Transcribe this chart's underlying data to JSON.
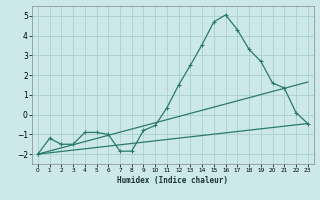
{
  "xlabel": "Humidex (Indice chaleur)",
  "ylabel": "",
  "bg_color": "#cce8e8",
  "grid_color": "#aad0d0",
  "line_color": "#2a7a6a",
  "xlim": [
    -0.5,
    23.5
  ],
  "ylim": [
    -2.5,
    5.5
  ],
  "xticks": [
    0,
    1,
    2,
    3,
    4,
    5,
    6,
    7,
    8,
    9,
    10,
    11,
    12,
    13,
    14,
    15,
    16,
    17,
    18,
    19,
    20,
    21,
    22,
    23
  ],
  "yticks": [
    -2,
    -1,
    0,
    1,
    2,
    3,
    4,
    5
  ],
  "line1_x": [
    0,
    1,
    2,
    3,
    4,
    5,
    6,
    7,
    8,
    9,
    10,
    11,
    12,
    13,
    14,
    15,
    16,
    17,
    18,
    19,
    20,
    21,
    22,
    23
  ],
  "line1_y": [
    -2.0,
    -1.2,
    -1.5,
    -1.5,
    -0.9,
    -0.9,
    -1.0,
    -1.85,
    -1.85,
    -0.8,
    -0.55,
    0.35,
    1.5,
    2.5,
    3.55,
    4.7,
    5.05,
    4.3,
    3.3,
    2.7,
    1.6,
    1.35,
    0.1,
    -0.45
  ],
  "line2_x": [
    0,
    23
  ],
  "line2_y": [
    -2.0,
    1.65
  ],
  "line3_x": [
    0,
    23
  ],
  "line3_y": [
    -2.0,
    -0.45
  ]
}
